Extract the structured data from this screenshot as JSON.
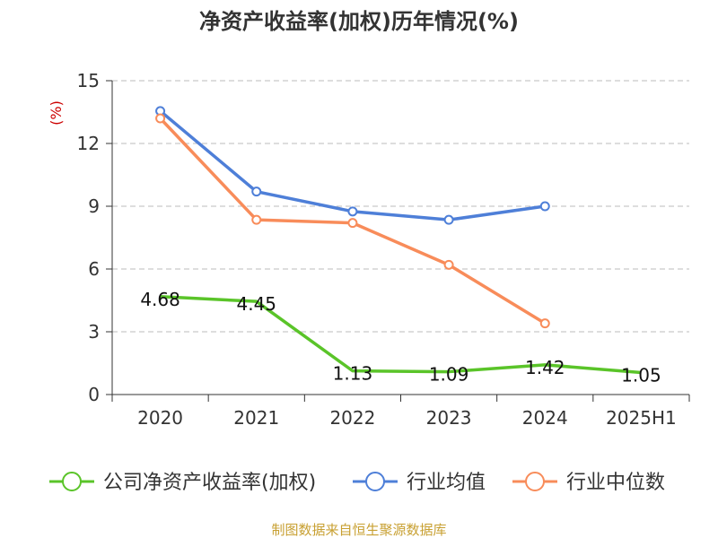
{
  "chart_data": {
    "type": "line",
    "title": "净资产收益率(加权)历年情况(%)",
    "ylabel": "(%)",
    "categories": [
      "2020",
      "2021",
      "2022",
      "2023",
      "2024",
      "2025H1"
    ],
    "ylim": [
      0,
      15
    ],
    "yticks": [
      0,
      3,
      6,
      9,
      12,
      15
    ],
    "grid": true,
    "legend": "bottom",
    "series": [
      {
        "name": "公司净资产收益率(加权)",
        "color": "#5ac429",
        "values": [
          4.68,
          4.45,
          1.13,
          1.09,
          1.42,
          1.05
        ],
        "labels": [
          "4.68",
          "4.45",
          "1.13",
          "1.09",
          "1.42",
          "1.05"
        ]
      },
      {
        "name": "行业均值",
        "color": "#4e7fd8",
        "values": [
          13.55,
          9.7,
          8.75,
          8.35,
          9.0,
          null
        ]
      },
      {
        "name": "行业中位数",
        "color": "#f88c5a",
        "values": [
          13.2,
          8.35,
          8.2,
          6.2,
          3.4,
          null
        ]
      }
    ]
  },
  "footer": {
    "source": "制图数据来自恒生聚源数据库"
  }
}
